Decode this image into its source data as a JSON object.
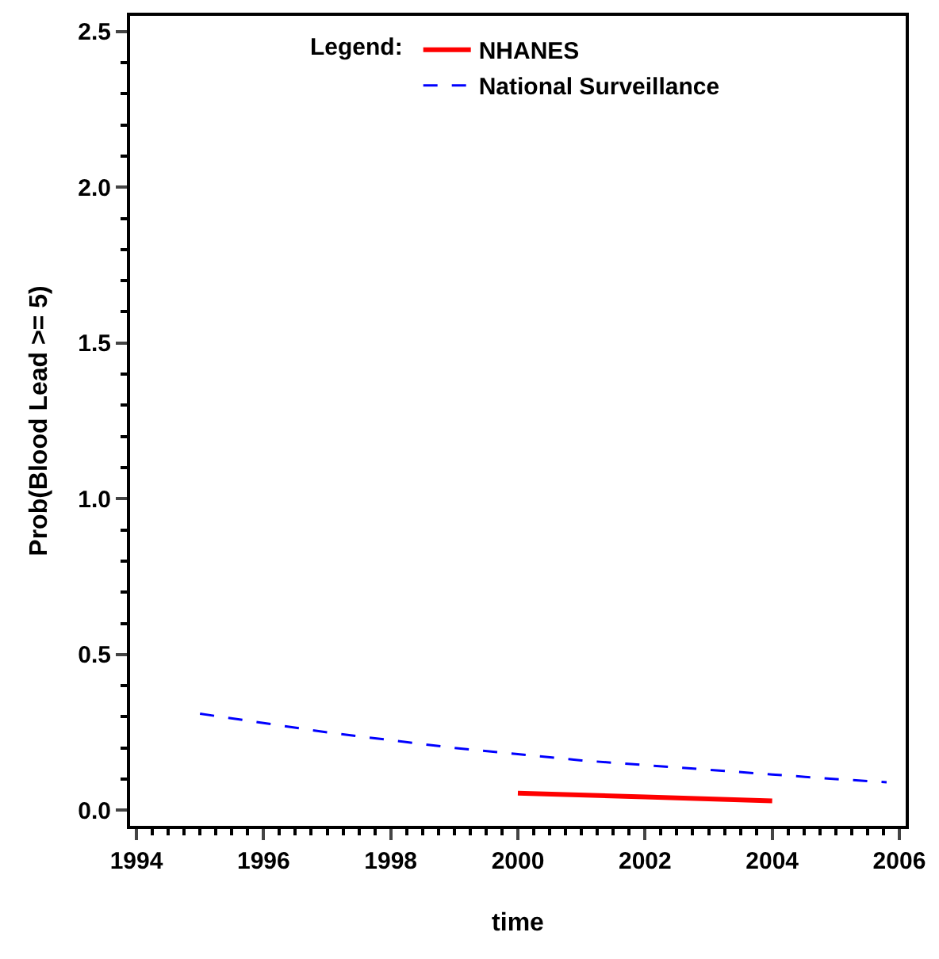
{
  "chart_data": {
    "type": "line",
    "xlabel": "time",
    "ylabel": "Prob(Blood Lead >= 5)",
    "legend_title": "Legend:",
    "legend": "top",
    "marker": "none",
    "xlim": [
      1993.9,
      2006.1
    ],
    "xticks": [
      1994,
      1996,
      1998,
      2000,
      2002,
      2004,
      2006
    ],
    "ylim": [
      -0.05,
      2.55
    ],
    "yticks": [
      {
        "value": 0,
        "label": "0.0"
      },
      {
        "value": 0.5,
        "label": "0.5"
      },
      {
        "value": 1,
        "label": "1.0"
      },
      {
        "value": 1.5,
        "label": "1.5"
      },
      {
        "value": 2,
        "label": "2.0"
      },
      {
        "value": 2.5,
        "label": "2.5"
      }
    ],
    "series": [
      {
        "name": "NHANES",
        "color": "#ff0000",
        "line_style": "solid",
        "x": [
          2000,
          2002,
          2004
        ],
        "values": [
          0.055,
          0.043,
          0.03
        ]
      },
      {
        "name": "National Surveillance",
        "color": "#0000ff",
        "line_style": "dashed",
        "x": [
          1995,
          1996,
          1997,
          1998,
          1999,
          2000,
          2001,
          2002,
          2003,
          2004,
          2005,
          2005.8
        ],
        "values": [
          0.31,
          0.28,
          0.25,
          0.225,
          0.2,
          0.18,
          0.16,
          0.145,
          0.13,
          0.115,
          0.1,
          0.09
        ]
      }
    ]
  }
}
